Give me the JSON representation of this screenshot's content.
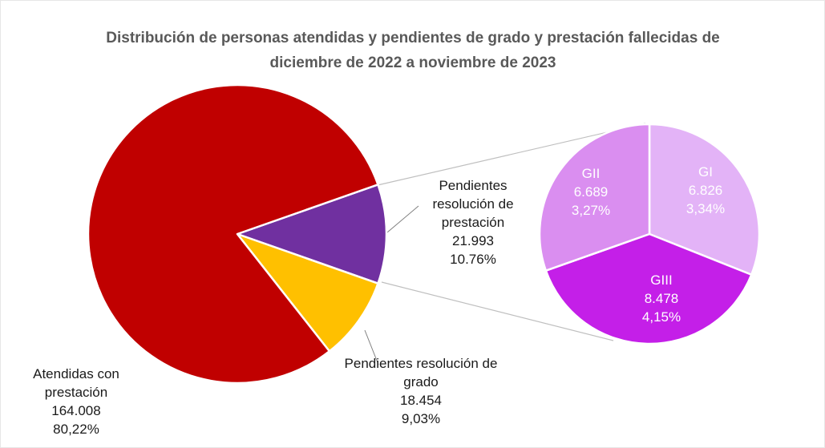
{
  "chart_data": {
    "type": "pie_of_pie",
    "title": "Distribución de personas atendidas  y pendientes de grado y prestación fallecidas de  diciembre de 2022 a noviembre de 2023",
    "categories": [
      "Pendientes resolución de prestación",
      "Pendientes resolución de grado",
      "Atendidas con prestación"
    ],
    "values": [
      21993,
      18454,
      164008
    ],
    "value_labels": [
      "21.993",
      "18.454",
      "164.008"
    ],
    "percent_labels": [
      "10.76%",
      "9,03%",
      "80,22%"
    ],
    "colors": [
      "#7030a0",
      "#ffc000",
      "#c00000"
    ],
    "secondary": {
      "categories": [
        "GI",
        "GIII",
        "GII"
      ],
      "values": [
        6826,
        8478,
        6689
      ],
      "value_labels": [
        "6.826",
        "8.478",
        "6.689"
      ],
      "percent_labels": [
        "3,34%",
        "4,15%",
        "3,27%"
      ],
      "colors": [
        "#e3b3f7",
        "#c41fe8",
        "#da8ef0"
      ]
    }
  }
}
